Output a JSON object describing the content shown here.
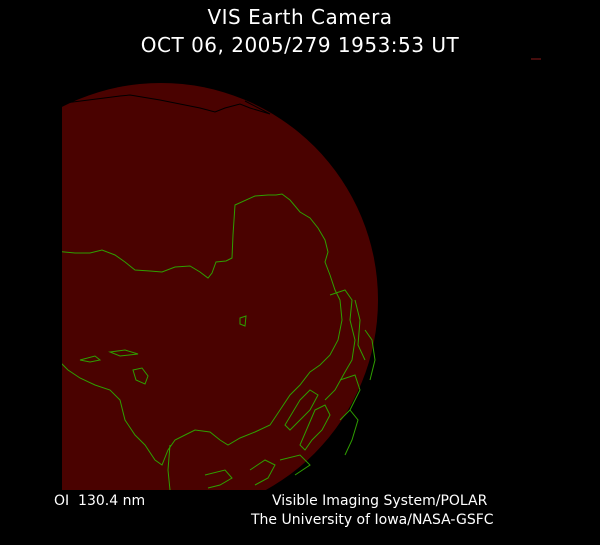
{
  "header": {
    "title": "VIS Earth Camera",
    "timestamp": "OCT 06, 2005/279 1953:53 UT"
  },
  "image": {
    "description_type": "earth-disk-image",
    "disk_color": "#4a0200",
    "coastline_color": "#2f9f00"
  },
  "footer": {
    "band": "OI  130.4 nm",
    "instrument": "Visible Imaging System/POLAR",
    "institution": "The University of Iowa/NASA-GSFC"
  }
}
